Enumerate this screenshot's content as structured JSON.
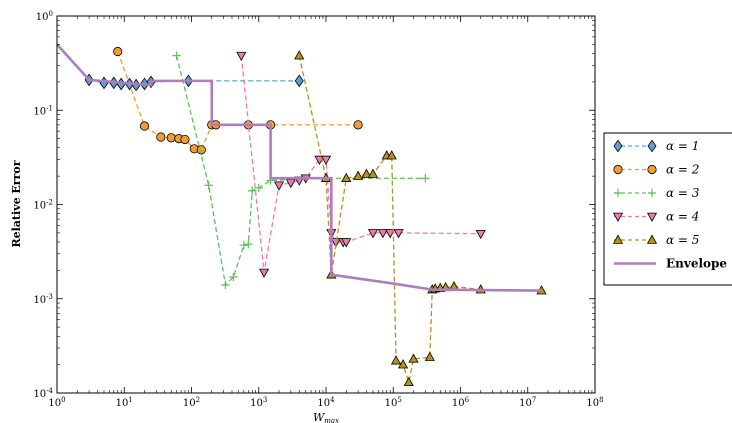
{
  "chart_data": {
    "type": "line",
    "title": "",
    "xlabel": "W_max",
    "ylabel": "Relative Error",
    "xscale": "log",
    "yscale": "log",
    "xlim": [
      1,
      100000000
    ],
    "ylim": [
      0.0001,
      1
    ],
    "grid": false,
    "legend_position": "right",
    "x_tick_labels": [
      "10^0",
      "10^1",
      "10^2",
      "10^3",
      "10^4",
      "10^5",
      "10^6",
      "10^7",
      "10^8"
    ],
    "y_tick_labels": [
      "10^-4",
      "10^-3",
      "10^-2",
      "10^-1",
      "10^0"
    ],
    "series": [
      {
        "name": "α = 1",
        "color": "#5aa0d0",
        "marker": "diamond",
        "linestyle": "dashed",
        "points": [
          [
            3,
            0.21
          ],
          [
            5,
            0.195
          ],
          [
            7,
            0.195
          ],
          [
            9,
            0.19
          ],
          [
            12,
            0.19
          ],
          [
            15,
            0.185
          ],
          [
            20,
            0.19
          ],
          [
            25,
            0.2
          ],
          [
            90,
            0.205
          ],
          [
            4000,
            0.205
          ]
        ]
      },
      {
        "name": "α = 2",
        "color": "#f39c33",
        "marker": "circle",
        "linestyle": "dashed",
        "points": [
          [
            8,
            0.42
          ],
          [
            20,
            0.068
          ],
          [
            35,
            0.052
          ],
          [
            50,
            0.051
          ],
          [
            65,
            0.05
          ],
          [
            80,
            0.049
          ],
          [
            110,
            0.039
          ],
          [
            140,
            0.038
          ],
          [
            200,
            0.07
          ],
          [
            230,
            0.07
          ],
          [
            700,
            0.07
          ],
          [
            1500,
            0.07
          ],
          [
            30000,
            0.07
          ]
        ]
      },
      {
        "name": "α = 3",
        "color": "#5cc05c",
        "marker": "plus",
        "linestyle": "dashed",
        "points": [
          [
            60,
            0.38
          ],
          [
            180,
            0.016
          ],
          [
            320,
            0.0014
          ],
          [
            420,
            0.0017
          ],
          [
            600,
            0.0037
          ],
          [
            700,
            0.0038
          ],
          [
            800,
            0.014
          ],
          [
            1000,
            0.015
          ],
          [
            1500,
            0.018
          ],
          [
            10000,
            0.019
          ],
          [
            300000,
            0.019
          ]
        ]
      },
      {
        "name": "α = 4",
        "color": "#f07aa8",
        "marker": "triangle-down",
        "linestyle": "dashed",
        "points": [
          [
            550,
            0.38
          ],
          [
            1200,
            0.0019
          ],
          [
            2000,
            0.016
          ],
          [
            3000,
            0.017
          ],
          [
            4000,
            0.018
          ],
          [
            5000,
            0.019
          ],
          [
            8000,
            0.03
          ],
          [
            10000,
            0.03
          ],
          [
            12000,
            0.005
          ],
          [
            14000,
            0.004
          ],
          [
            18000,
            0.004
          ],
          [
            20000,
            0.004
          ],
          [
            50000,
            0.005
          ],
          [
            70000,
            0.005
          ],
          [
            90000,
            0.005
          ],
          [
            120000,
            0.005
          ],
          [
            2000000,
            0.0049
          ]
        ]
      },
      {
        "name": "α = 5",
        "color": "#b8901a",
        "marker": "triangle-up",
        "linestyle": "dashed",
        "points": [
          [
            4000,
            0.38
          ],
          [
            10000,
            0.019
          ],
          [
            12000,
            0.0018
          ],
          [
            20000,
            0.019
          ],
          [
            30000,
            0.02
          ],
          [
            40000,
            0.021
          ],
          [
            50000,
            0.021
          ],
          [
            80000,
            0.033
          ],
          [
            95000,
            0.033
          ],
          [
            110000,
            0.00022
          ],
          [
            140000,
            0.0002
          ],
          [
            170000,
            0.00013
          ],
          [
            200000,
            0.00023
          ],
          [
            350000,
            0.00024
          ],
          [
            380000,
            0.00125
          ],
          [
            420000,
            0.00128
          ],
          [
            500000,
            0.0013
          ],
          [
            600000,
            0.00132
          ],
          [
            800000,
            0.00135
          ],
          [
            2000000,
            0.00125
          ],
          [
            16000000,
            0.00122
          ]
        ]
      },
      {
        "name": "Envelope",
        "color": "#b07cc0",
        "marker": "none",
        "linestyle": "solid",
        "points": [
          [
            1,
            0.5
          ],
          [
            3,
            0.21
          ],
          [
            25,
            0.185
          ],
          [
            25,
            0.205
          ],
          [
            200,
            0.205
          ],
          [
            200,
            0.07
          ],
          [
            1500,
            0.07
          ],
          [
            1500,
            0.019
          ],
          [
            12000,
            0.019
          ],
          [
            12000,
            0.0018
          ],
          [
            100000,
            0.00145
          ],
          [
            380000,
            0.00125
          ],
          [
            16000000,
            0.00122
          ]
        ]
      }
    ]
  }
}
